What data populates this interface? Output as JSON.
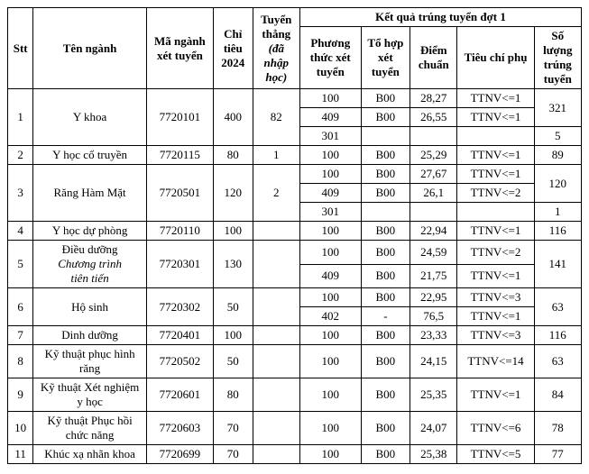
{
  "headers": {
    "stt": "Stt",
    "ten_nganh": "Tên ngành",
    "ma_nganh": "Mã ngành xét tuyển",
    "chi_tieu": "Chỉ tiêu 2024",
    "tuyen_thang": "Tuyển thẳng",
    "tuyen_thang_sub": "(đã nhập học)",
    "kq_group": "Kết quả trúng tuyển đợt 1",
    "phuong_thuc": "Phương thức xét tuyển",
    "to_hop": "Tổ hợp xét tuyển",
    "diem_chuan": "Điểm chuẩn",
    "tieu_chi": "Tiêu chí phụ",
    "so_luong": "Số lượng trúng tuyển"
  },
  "r1": {
    "stt": "1",
    "name": "Y khoa",
    "code": "7720101",
    "quota": "400",
    "tt": "82",
    "a": {
      "pt": "100",
      "th": "B00",
      "score": "28,27",
      "crit": "TTNV<=1"
    },
    "b": {
      "pt": "409",
      "th": "B00",
      "score": "26,55",
      "crit": "TTNV<=1"
    },
    "c": {
      "pt": "301",
      "th": "",
      "score": "",
      "crit": ""
    },
    "cnt_ab": "321",
    "cnt_c": "5"
  },
  "r2": {
    "stt": "2",
    "name": "Y học cổ truyền",
    "code": "7720115",
    "quota": "80",
    "tt": "1",
    "a": {
      "pt": "100",
      "th": "B00",
      "score": "25,29",
      "crit": "TTNV<=1"
    },
    "cnt": "89"
  },
  "r3": {
    "stt": "3",
    "name": "Răng Hàm Mặt",
    "code": "7720501",
    "quota": "120",
    "tt": "2",
    "a": {
      "pt": "100",
      "th": "B00",
      "score": "27,67",
      "crit": "TTNV<=1"
    },
    "b": {
      "pt": "409",
      "th": "B00",
      "score": "26,1",
      "crit": "TTNV<=2"
    },
    "c": {
      "pt": "301",
      "th": "",
      "score": "",
      "crit": ""
    },
    "cnt_ab": "120",
    "cnt_c": "1"
  },
  "r4": {
    "stt": "4",
    "name": "Y học dự phòng",
    "code": "7720110",
    "quota": "100",
    "tt": "",
    "a": {
      "pt": "100",
      "th": "B00",
      "score": "22,94",
      "crit": "TTNV<=1"
    },
    "cnt": "116"
  },
  "r5": {
    "stt": "5",
    "name_l1": "Điều dưỡng",
    "name_l2": "Chương trình",
    "name_l3": "tiên tiến",
    "code": "7720301",
    "quota": "130",
    "tt": "",
    "a": {
      "pt": "100",
      "th": "B00",
      "score": "24,59",
      "crit": "TTNV<=2"
    },
    "b": {
      "pt": "409",
      "th": "B00",
      "score": "21,75",
      "crit": "TTNV<=1"
    },
    "cnt": "141"
  },
  "r6": {
    "stt": "6",
    "name": "Hộ sinh",
    "code": "7720302",
    "quota": "50",
    "tt": "",
    "a": {
      "pt": "100",
      "th": "B00",
      "score": "22,95",
      "crit": "TTNV<=3"
    },
    "b": {
      "pt": "402",
      "th": "-",
      "score": "76,5",
      "crit": "TTNV<=1"
    },
    "cnt": "63"
  },
  "r7": {
    "stt": "7",
    "name": "Dinh dưỡng",
    "code": "7720401",
    "quota": "100",
    "tt": "",
    "a": {
      "pt": "100",
      "th": "B00",
      "score": "23,33",
      "crit": "TTNV<=3"
    },
    "cnt": "116"
  },
  "r8": {
    "stt": "8",
    "name": "Kỹ thuật phục hình răng",
    "code": "7720502",
    "quota": "50",
    "tt": "",
    "a": {
      "pt": "100",
      "th": "B00",
      "score": "24,15",
      "crit": "TTNV<=14"
    },
    "cnt": "63"
  },
  "r9": {
    "stt": "9",
    "name": "Kỹ thuật Xét nghiệm y học",
    "code": "7720601",
    "quota": "80",
    "tt": "",
    "a": {
      "pt": "100",
      "th": "B00",
      "score": "25,35",
      "crit": "TTNV<=1"
    },
    "cnt": "84"
  },
  "r10": {
    "stt": "10",
    "name": "Kỹ thuật Phục hồi chức năng",
    "code": "7720603",
    "quota": "70",
    "tt": "",
    "a": {
      "pt": "100",
      "th": "B00",
      "score": "24,07",
      "crit": "TTNV<=6"
    },
    "cnt": "78"
  },
  "r11": {
    "stt": "11",
    "name": "Khúc xạ nhãn khoa",
    "code": "7720699",
    "quota": "70",
    "tt": "",
    "a": {
      "pt": "100",
      "th": "B00",
      "score": "25,38",
      "crit": "TTNV<=5"
    },
    "cnt": "77"
  }
}
